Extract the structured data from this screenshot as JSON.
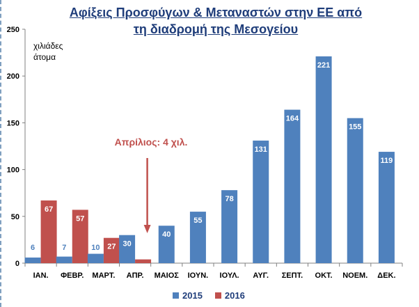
{
  "title_line1": "Αφίξεις Προσφύγων & Μεταναστών στην ΕΕ από",
  "title_line2": "τη διαδρομή της Μεσογείου",
  "unit_line1": "χιλιάδες",
  "unit_line2": "άτομα",
  "annotation": "Απρίλιος: 4 χιλ.",
  "colors": {
    "series_2015": "#4f81bd",
    "series_2016": "#c0504d",
    "title": "#1f3d7a",
    "annotation": "#c0504d"
  },
  "chart_data": {
    "type": "bar",
    "title": "Αφίξεις Προσφύγων & Μεταναστών στην ΕΕ από τη διαδρομή της Μεσογείου",
    "ylabel": "χιλιάδες άτομα",
    "ylim": [
      0,
      250
    ],
    "yticks": [
      0,
      50,
      100,
      150,
      200,
      250
    ],
    "grid": false,
    "legend": "bottom",
    "categories": [
      "ΙΑΝ.",
      "ΦΕΒΡ.",
      "ΜΑΡΤ.",
      "ΑΠΡ.",
      "ΜΑΙΟΣ",
      "ΙΟΥΝ.",
      "ΙΟΥΛ.",
      "ΑΥΓ.",
      "ΣΕΠΤ.",
      "ΟΚΤ.",
      "ΝΟΕΜ.",
      "ΔΕΚ."
    ],
    "series": [
      {
        "name": "2015",
        "values": [
          6,
          7,
          10,
          30,
          40,
          55,
          78,
          131,
          164,
          221,
          155,
          119
        ],
        "labels": [
          "6",
          "7",
          "10",
          "30",
          "40",
          "55",
          "78",
          "131",
          "164",
          "221",
          "155",
          "119"
        ]
      },
      {
        "name": "2016",
        "values": [
          67,
          57,
          27,
          4,
          null,
          null,
          null,
          null,
          null,
          null,
          null,
          null
        ],
        "labels": [
          "67",
          "57",
          "27",
          "",
          "",
          "",
          "",
          "",
          "",
          "",
          "",
          ""
        ]
      }
    ]
  }
}
